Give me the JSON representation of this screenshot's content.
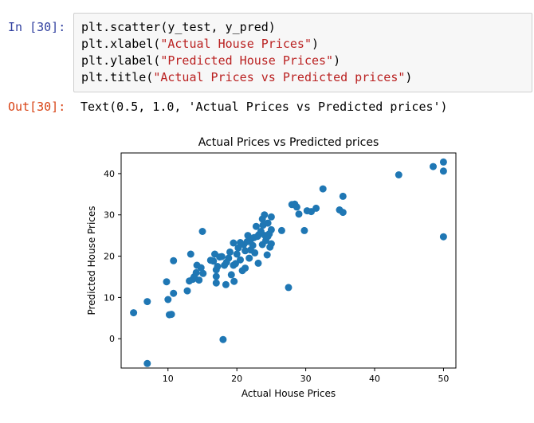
{
  "input_cell": {
    "prompt": "In [30]:",
    "lines": [
      {
        "pre": "plt.scatter(y_test, y_pred)",
        "str": "",
        "post": ""
      },
      {
        "pre": "plt.xlabel(",
        "str": "\"Actual House Prices\"",
        "post": ")"
      },
      {
        "pre": "plt.ylabel(",
        "str": "\"Predicted House Prices\"",
        "post": ")"
      },
      {
        "pre": "plt.title(",
        "str": "\"Actual Prices vs Predicted prices\"",
        "post": ")"
      }
    ]
  },
  "output_cell": {
    "prompt": "Out[30]:",
    "text": "Text(0.5, 1.0, 'Actual Prices vs Predicted prices')"
  },
  "chart_data": {
    "type": "scatter",
    "title": "Actual Prices vs Predicted prices",
    "xlabel": "Actual House Prices",
    "ylabel": "Predicted House Prices",
    "xlim": [
      3.2,
      51.8
    ],
    "ylim": [
      -7.1,
      45.0
    ],
    "xticks": [
      10,
      20,
      30,
      40,
      50
    ],
    "yticks": [
      0,
      10,
      20,
      30,
      40
    ],
    "grid": false,
    "marker_color": "#1f77b4",
    "points": [
      [
        5.0,
        6.3
      ],
      [
        7.0,
        9.0
      ],
      [
        7.0,
        -6.0
      ],
      [
        9.8,
        13.8
      ],
      [
        10.0,
        9.5
      ],
      [
        10.2,
        5.8
      ],
      [
        10.5,
        5.9
      ],
      [
        10.8,
        11.0
      ],
      [
        10.8,
        18.9
      ],
      [
        12.8,
        11.6
      ],
      [
        13.1,
        14.0
      ],
      [
        13.3,
        20.5
      ],
      [
        13.6,
        14.4
      ],
      [
        13.8,
        15.0
      ],
      [
        14.1,
        16.0
      ],
      [
        14.2,
        17.8
      ],
      [
        14.5,
        14.2
      ],
      [
        14.8,
        17.2
      ],
      [
        15.0,
        26.0
      ],
      [
        15.1,
        15.8
      ],
      [
        16.2,
        19.0
      ],
      [
        16.6,
        18.8
      ],
      [
        16.8,
        20.5
      ],
      [
        17.0,
        13.5
      ],
      [
        17.0,
        15.1
      ],
      [
        17.0,
        16.7
      ],
      [
        17.2,
        17.5
      ],
      [
        17.5,
        19.8
      ],
      [
        17.8,
        19.9
      ],
      [
        18.0,
        -0.2
      ],
      [
        18.2,
        17.8
      ],
      [
        18.4,
        13.1
      ],
      [
        18.5,
        18.5
      ],
      [
        18.8,
        19.5
      ],
      [
        19.0,
        21.0
      ],
      [
        19.2,
        15.5
      ],
      [
        19.5,
        23.2
      ],
      [
        19.5,
        17.8
      ],
      [
        19.6,
        13.9
      ],
      [
        19.8,
        18.2
      ],
      [
        20.0,
        20.5
      ],
      [
        20.2,
        22.0
      ],
      [
        20.5,
        23.3
      ],
      [
        20.5,
        19.1
      ],
      [
        20.8,
        16.5
      ],
      [
        21.0,
        22.8
      ],
      [
        21.2,
        21.3
      ],
      [
        21.2,
        17.1
      ],
      [
        21.5,
        23.5
      ],
      [
        21.6,
        25.0
      ],
      [
        21.8,
        19.5
      ],
      [
        22.0,
        24.0
      ],
      [
        22.0,
        21.5
      ],
      [
        22.3,
        22.6
      ],
      [
        22.5,
        24.5
      ],
      [
        22.6,
        20.8
      ],
      [
        22.8,
        27.2
      ],
      [
        23.0,
        24.8
      ],
      [
        23.1,
        18.3
      ],
      [
        23.2,
        25.2
      ],
      [
        23.5,
        26.0
      ],
      [
        23.7,
        22.8
      ],
      [
        23.7,
        29.0
      ],
      [
        23.8,
        27.5
      ],
      [
        24.0,
        30.0
      ],
      [
        24.1,
        25.0
      ],
      [
        24.2,
        23.8
      ],
      [
        24.4,
        20.3
      ],
      [
        24.5,
        24.8
      ],
      [
        24.5,
        28.0
      ],
      [
        24.7,
        25.4
      ],
      [
        24.8,
        22.2
      ],
      [
        25.0,
        26.4
      ],
      [
        25.0,
        29.5
      ],
      [
        25.0,
        23.0
      ],
      [
        26.5,
        26.2
      ],
      [
        27.5,
        12.4
      ],
      [
        28.0,
        32.5
      ],
      [
        28.4,
        32.6
      ],
      [
        28.7,
        31.9
      ],
      [
        29.0,
        30.2
      ],
      [
        29.8,
        26.2
      ],
      [
        30.2,
        31.0
      ],
      [
        30.8,
        30.8
      ],
      [
        31.5,
        31.6
      ],
      [
        32.5,
        36.3
      ],
      [
        34.9,
        31.2
      ],
      [
        35.4,
        34.5
      ],
      [
        35.4,
        30.6
      ],
      [
        43.5,
        39.7
      ],
      [
        48.5,
        41.7
      ],
      [
        50.0,
        42.8
      ],
      [
        50.0,
        40.6
      ],
      [
        50.0,
        24.7
      ]
    ]
  }
}
